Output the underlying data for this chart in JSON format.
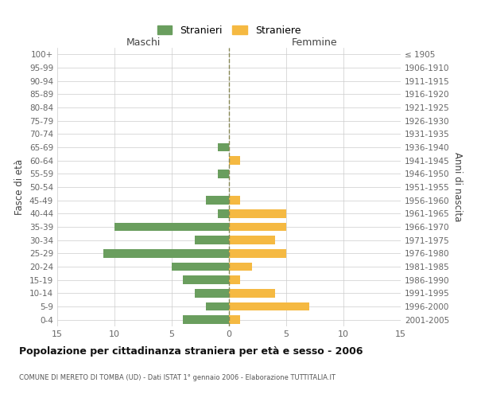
{
  "age_groups": [
    "100+",
    "95-99",
    "90-94",
    "85-89",
    "80-84",
    "75-79",
    "70-74",
    "65-69",
    "60-64",
    "55-59",
    "50-54",
    "45-49",
    "40-44",
    "35-39",
    "30-34",
    "25-29",
    "20-24",
    "15-19",
    "10-14",
    "5-9",
    "0-4"
  ],
  "birth_years": [
    "≤ 1905",
    "1906-1910",
    "1911-1915",
    "1916-1920",
    "1921-1925",
    "1926-1930",
    "1931-1935",
    "1936-1940",
    "1941-1945",
    "1946-1950",
    "1951-1955",
    "1956-1960",
    "1961-1965",
    "1966-1970",
    "1971-1975",
    "1976-1980",
    "1981-1985",
    "1986-1990",
    "1991-1995",
    "1996-2000",
    "2001-2005"
  ],
  "maschi": [
    0,
    0,
    0,
    0,
    0,
    0,
    0,
    1,
    0,
    1,
    0,
    2,
    1,
    10,
    3,
    11,
    5,
    4,
    3,
    2,
    4
  ],
  "femmine": [
    0,
    0,
    0,
    0,
    0,
    0,
    0,
    0,
    1,
    0,
    0,
    1,
    5,
    5,
    4,
    5,
    2,
    1,
    4,
    7,
    1
  ],
  "color_maschi": "#6a9e5e",
  "color_femmine": "#f5b942",
  "title": "Popolazione per cittadinanza straniera per età e sesso - 2006",
  "subtitle": "COMUNE DI MERETO DI TOMBA (UD) - Dati ISTAT 1° gennaio 2006 - Elaborazione TUTTITALIA.IT",
  "ylabel_left": "Fasce di età",
  "ylabel_right": "Anni di nascita",
  "xlabel_maschi": "Maschi",
  "xlabel_femmine": "Femmine",
  "xlim": 15,
  "legend_stranieri": "Stranieri",
  "legend_straniere": "Straniere",
  "background_color": "#ffffff",
  "grid_color": "#cccccc"
}
